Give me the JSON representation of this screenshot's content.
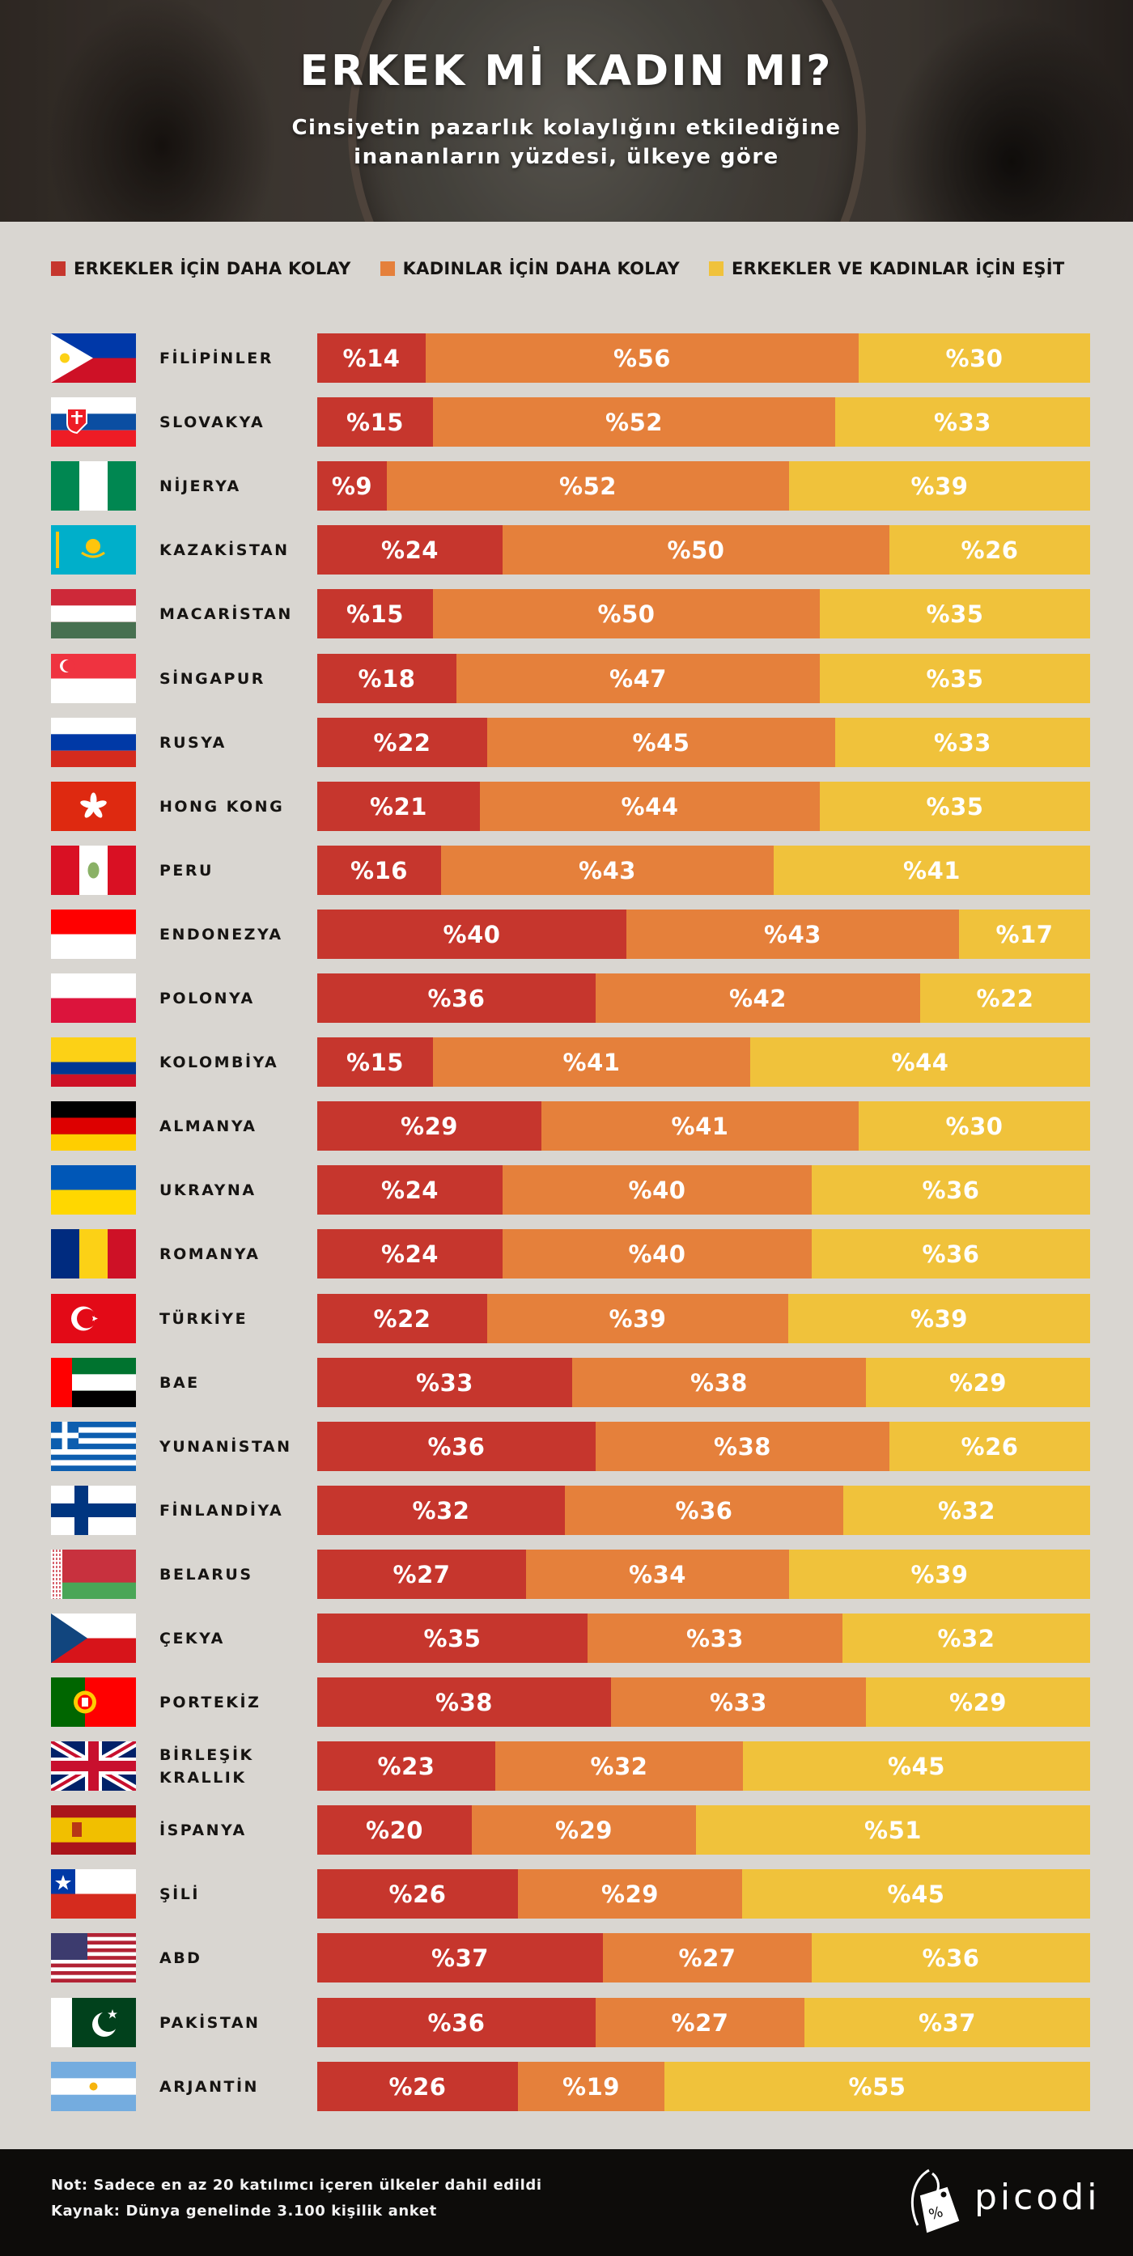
{
  "header": {
    "title": "ERKEK Mİ KADIN MI?",
    "subtitle_line1": "Cinsiyetin pazarlık kolaylığını etkilediğine",
    "subtitle_line2": "inananların yüzdesi, ülkeye göre"
  },
  "colors": {
    "men_easier": "#c6362d",
    "women_easier": "#e5803b",
    "equal": "#f0c23b",
    "background": "#d9d6d1",
    "footer": "#0d0c0a"
  },
  "legend": [
    {
      "label": "ERKEKLER İÇİN DAHA KOLAY",
      "color_key": "men_easier"
    },
    {
      "label": "KADINLAR İÇİN DAHA KOLAY",
      "color_key": "women_easier"
    },
    {
      "label": "ERKEKLER VE KADINLAR İÇİN EŞİT",
      "color_key": "equal"
    }
  ],
  "chart_data": {
    "type": "bar",
    "orientation": "horizontal",
    "stacked": true,
    "normalized_percent": true,
    "title": "ERKEK Mİ KADIN MI?",
    "subtitle": "Cinsiyetin pazarlık kolaylığını etkilediğine inananların yüzdesi, ülkeye göre",
    "xlabel": "",
    "ylabel": "",
    "xlim": [
      0,
      100
    ],
    "value_prefix": "%",
    "legend_position": "top",
    "grid": false,
    "categories": [
      "FİLİPİNLER",
      "SLOVAKYA",
      "NİJERYA",
      "KAZAKİSTAN",
      "MACARİSTAN",
      "SİNGAPUR",
      "RUSYA",
      "HONG KONG",
      "PERU",
      "ENDONEZYA",
      "POLONYA",
      "KOLOMBİYA",
      "ALMANYA",
      "UKRAYNA",
      "ROMANYA",
      "TÜRKİYE",
      "BAE",
      "YUNANİSTAN",
      "FİNLANDİYA",
      "BELARUS",
      "ÇEKYA",
      "PORTEKİZ",
      "BİRLEŞİK KRALLIK",
      "İSPANYA",
      "ŞİLİ",
      "ABD",
      "PAKİSTAN",
      "ARJANTİN"
    ],
    "flags": [
      "philippines",
      "slovakia",
      "nigeria",
      "kazakhstan",
      "hungary",
      "singapore",
      "russia",
      "hong-kong",
      "peru",
      "indonesia",
      "poland",
      "colombia",
      "germany",
      "ukraine",
      "romania",
      "turkey",
      "uae",
      "greece",
      "finland",
      "belarus",
      "czechia",
      "portugal",
      "united-kingdom",
      "spain",
      "chile",
      "usa",
      "pakistan",
      "argentina"
    ],
    "series": [
      {
        "name": "ERKEKLER İÇİN DAHA KOLAY",
        "color_key": "men_easier",
        "values": [
          14,
          15,
          9,
          24,
          15,
          18,
          22,
          21,
          16,
          40,
          36,
          15,
          29,
          24,
          24,
          22,
          33,
          36,
          32,
          27,
          35,
          38,
          23,
          20,
          26,
          37,
          36,
          26
        ]
      },
      {
        "name": "KADINLAR İÇİN DAHA KOLAY",
        "color_key": "women_easier",
        "values": [
          56,
          52,
          52,
          50,
          50,
          47,
          45,
          44,
          43,
          43,
          42,
          41,
          41,
          40,
          40,
          39,
          38,
          38,
          36,
          34,
          33,
          33,
          32,
          29,
          29,
          27,
          27,
          19
        ]
      },
      {
        "name": "ERKEKLER VE KADINLAR İÇİN EŞİT",
        "color_key": "equal",
        "values": [
          30,
          33,
          39,
          26,
          35,
          35,
          33,
          35,
          41,
          17,
          22,
          44,
          30,
          36,
          36,
          39,
          29,
          26,
          32,
          39,
          32,
          29,
          45,
          51,
          45,
          36,
          37,
          55
        ]
      }
    ]
  },
  "footer": {
    "note": "Not: Sadece en az 20 katılımcı içeren ülkeler dahil edildi",
    "source": "Kaynak: Dünya genelinde 3.100 kişilik anket",
    "logo_text": "picodi"
  }
}
